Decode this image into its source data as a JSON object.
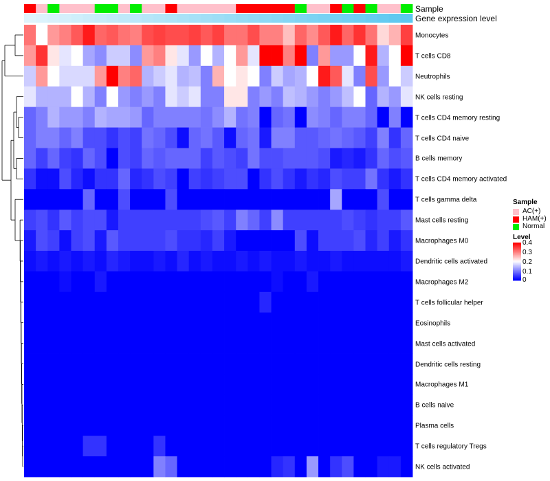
{
  "chart_data": {
    "type": "heatmap",
    "title": "",
    "annotations": [
      {
        "name": "Sample"
      },
      {
        "name": "Gene expression level"
      }
    ],
    "sample_groups": [
      "HAM(+)",
      "AC(+)",
      "Normal",
      "AC(+)",
      "AC(+)",
      "AC(+)",
      "Normal",
      "Normal",
      "AC(+)",
      "Normal",
      "AC(+)",
      "AC(+)",
      "HAM(+)",
      "AC(+)",
      "AC(+)",
      "AC(+)",
      "AC(+)",
      "AC(+)",
      "HAM(+)",
      "HAM(+)",
      "HAM(+)",
      "HAM(+)",
      "HAM(+)",
      "Normal",
      "AC(+)",
      "AC(+)",
      "HAM(+)",
      "Normal",
      "HAM(+)",
      "Normal",
      "AC(+)",
      "AC(+)",
      "Normal"
    ],
    "group_colors": {
      "AC(+)": "#ffc0cb",
      "HAM(+)": "#ff0000",
      "Normal": "#00ee00"
    },
    "expression_gradient": [
      "#e0f4fc",
      "#5bc8f0"
    ],
    "rows": [
      "Monocytes",
      "T cells CD8",
      "Neutrophils",
      "NK cells resting",
      "T cells CD4 memory resting",
      "T cells CD4 naive",
      "B cells memory",
      "T cells CD4 memory activated",
      "T cells gamma delta",
      "Mast cells resting",
      "Macrophages M0",
      "Dendritic cells activated",
      "Macrophages M2",
      "T cells follicular helper",
      "Eosinophils",
      "Mast cells activated",
      "Dendritic cells resting",
      "Macrophages M1",
      "B cells naive",
      "Plasma cells",
      "T cells regulatory  Tregs",
      "NK cells activated"
    ],
    "values": [
      [
        0.31,
        0.2,
        0.28,
        0.3,
        0.33,
        0.38,
        0.32,
        0.33,
        0.31,
        0.3,
        0.34,
        0.35,
        0.34,
        0.34,
        0.35,
        0.33,
        0.35,
        0.31,
        0.31,
        0.34,
        0.3,
        0.3,
        0.25,
        0.32,
        0.29,
        0.33,
        0.38,
        0.32,
        0.36,
        0.31,
        0.23,
        0.26,
        0.35
      ],
      [
        0.28,
        0.36,
        0.22,
        0.18,
        0.2,
        0.13,
        0.11,
        0.16,
        0.16,
        0.11,
        0.28,
        0.3,
        0.22,
        0.18,
        0.12,
        0.2,
        0.14,
        0.2,
        0.28,
        0.18,
        0.4,
        0.4,
        0.3,
        0.4,
        0.1,
        0.28,
        0.12,
        0.12,
        0.2,
        0.38,
        0.14,
        0.2,
        0.4
      ],
      [
        0.16,
        0.28,
        0.2,
        0.17,
        0.17,
        0.17,
        0.28,
        0.4,
        0.3,
        0.32,
        0.14,
        0.16,
        0.18,
        0.14,
        0.15,
        0.1,
        0.26,
        0.2,
        0.22,
        0.2,
        0.1,
        0.16,
        0.13,
        0.14,
        0.2,
        0.38,
        0.33,
        0.18,
        0.1,
        0.34,
        0.12,
        0.2,
        0.16
      ],
      [
        0.18,
        0.14,
        0.14,
        0.14,
        0.2,
        0.14,
        0.1,
        0.2,
        0.12,
        0.1,
        0.12,
        0.1,
        0.18,
        0.16,
        0.18,
        0.1,
        0.1,
        0.22,
        0.22,
        0.1,
        0.12,
        0.1,
        0.15,
        0.14,
        0.12,
        0.1,
        0.12,
        0.15,
        0.2,
        0.08,
        0.14,
        0.12,
        0.18
      ],
      [
        0.08,
        0.1,
        0.14,
        0.12,
        0.12,
        0.1,
        0.14,
        0.13,
        0.13,
        0.12,
        0.08,
        0.1,
        0.1,
        0.1,
        0.1,
        0.09,
        0.11,
        0.14,
        0.09,
        0.1,
        0.0,
        0.08,
        0.09,
        0.0,
        0.11,
        0.1,
        0.08,
        0.1,
        0.1,
        0.08,
        0.0,
        0.1,
        0.0
      ],
      [
        0.08,
        0.1,
        0.1,
        0.08,
        0.1,
        0.06,
        0.06,
        0.04,
        0.06,
        0.05,
        0.09,
        0.08,
        0.06,
        0.01,
        0.08,
        0.09,
        0.07,
        0.01,
        0.08,
        0.09,
        0.02,
        0.1,
        0.1,
        0.07,
        0.07,
        0.08,
        0.09,
        0.08,
        0.07,
        0.05,
        0.1,
        0.04,
        0.08
      ],
      [
        0.08,
        0.05,
        0.08,
        0.05,
        0.04,
        0.08,
        0.06,
        0.0,
        0.06,
        0.05,
        0.08,
        0.07,
        0.08,
        0.08,
        0.08,
        0.05,
        0.07,
        0.06,
        0.05,
        0.09,
        0.06,
        0.06,
        0.07,
        0.07,
        0.07,
        0.06,
        0.02,
        0.03,
        0.02,
        0.04,
        0.08,
        0.06,
        0.07
      ],
      [
        0.04,
        0.01,
        0.01,
        0.06,
        0.03,
        0.01,
        0.04,
        0.04,
        0.08,
        0.03,
        0.04,
        0.06,
        0.05,
        0.0,
        0.05,
        0.04,
        0.05,
        0.06,
        0.06,
        0.0,
        0.04,
        0.06,
        0.04,
        0.02,
        0.04,
        0.03,
        0.06,
        0.05,
        0.05,
        0.09,
        0.04,
        0.02,
        0.04
      ],
      [
        0.0,
        0.0,
        0.0,
        0.0,
        0.0,
        0.08,
        0.0,
        0.0,
        0.06,
        0.0,
        0.0,
        0.0,
        0.06,
        0.0,
        0.0,
        0.0,
        0.0,
        0.0,
        0.0,
        0.0,
        0.0,
        0.0,
        0.0,
        0.0,
        0.0,
        0.0,
        0.13,
        0.0,
        0.0,
        0.0,
        0.06,
        0.0,
        0.0
      ],
      [
        0.05,
        0.06,
        0.04,
        0.07,
        0.05,
        0.06,
        0.06,
        0.02,
        0.05,
        0.05,
        0.05,
        0.05,
        0.05,
        0.05,
        0.05,
        0.06,
        0.07,
        0.05,
        0.1,
        0.08,
        0.05,
        0.11,
        0.05,
        0.05,
        0.05,
        0.05,
        0.05,
        0.06,
        0.05,
        0.04,
        0.05,
        0.05,
        0.07
      ],
      [
        0.02,
        0.06,
        0.05,
        0.01,
        0.05,
        0.06,
        0.02,
        0.07,
        0.05,
        0.05,
        0.05,
        0.05,
        0.06,
        0.04,
        0.04,
        0.03,
        0.05,
        0.02,
        0.0,
        0.0,
        0.0,
        0.0,
        0.0,
        0.06,
        0.01,
        0.05,
        0.05,
        0.05,
        0.06,
        0.03,
        0.05,
        0.02,
        0.04
      ],
      [
        0.01,
        0.02,
        0.01,
        0.02,
        0.01,
        0.02,
        0.01,
        0.03,
        0.02,
        0.01,
        0.01,
        0.02,
        0.01,
        0.03,
        0.01,
        0.02,
        0.01,
        0.01,
        0.02,
        0.01,
        0.02,
        0.01,
        0.01,
        0.02,
        0.01,
        0.01,
        0.02,
        0.01,
        0.01,
        0.01,
        0.01,
        0.01,
        0.02
      ],
      [
        0.0,
        0.0,
        0.0,
        0.01,
        0.0,
        0.0,
        0.02,
        0.0,
        0.0,
        0.0,
        0.0,
        0.0,
        0.0,
        0.0,
        0.0,
        0.0,
        0.0,
        0.0,
        0.0,
        0.0,
        0.0,
        0.01,
        0.0,
        0.0,
        0.02,
        0.0,
        0.0,
        0.0,
        0.0,
        0.0,
        0.0,
        0.0,
        0.0
      ],
      [
        0.0,
        0.0,
        0.0,
        0.0,
        0.0,
        0.0,
        0.0,
        0.0,
        0.0,
        0.0,
        0.0,
        0.0,
        0.0,
        0.0,
        0.0,
        0.0,
        0.0,
        0.0,
        0.0,
        0.0,
        0.03,
        0.0,
        0.0,
        0.0,
        0.0,
        0.0,
        0.0,
        0.0,
        0.0,
        0.0,
        0.0,
        0.0,
        0.0
      ],
      [
        0.0,
        0.0,
        0.0,
        0.0,
        0.0,
        0.0,
        0.0,
        0.0,
        0.0,
        0.0,
        0.0,
        0.0,
        0.0,
        0.0,
        0.0,
        0.0,
        0.0,
        0.0,
        0.0,
        0.0,
        0.0,
        0.0,
        0.0,
        0.0,
        0.0,
        0.0,
        0.0,
        0.0,
        0.0,
        0.0,
        0.0,
        0.0,
        0.0
      ],
      [
        0.0,
        0.0,
        0.0,
        0.0,
        0.0,
        0.0,
        0.0,
        0.0,
        0.0,
        0.0,
        0.0,
        0.0,
        0.0,
        0.0,
        0.0,
        0.0,
        0.0,
        0.0,
        0.0,
        0.0,
        0.0,
        0.0,
        0.0,
        0.0,
        0.0,
        0.0,
        0.0,
        0.0,
        0.0,
        0.0,
        0.0,
        0.0,
        0.0
      ],
      [
        0.0,
        0.0,
        0.0,
        0.0,
        0.0,
        0.0,
        0.0,
        0.0,
        0.0,
        0.0,
        0.0,
        0.0,
        0.0,
        0.0,
        0.0,
        0.0,
        0.0,
        0.0,
        0.0,
        0.0,
        0.0,
        0.0,
        0.0,
        0.0,
        0.0,
        0.0,
        0.0,
        0.0,
        0.0,
        0.0,
        0.0,
        0.0,
        0.0
      ],
      [
        0.0,
        0.0,
        0.0,
        0.0,
        0.0,
        0.0,
        0.0,
        0.0,
        0.0,
        0.0,
        0.0,
        0.0,
        0.0,
        0.0,
        0.0,
        0.0,
        0.0,
        0.0,
        0.0,
        0.0,
        0.0,
        0.0,
        0.0,
        0.0,
        0.0,
        0.0,
        0.0,
        0.0,
        0.0,
        0.0,
        0.0,
        0.0,
        0.0
      ],
      [
        0.0,
        0.0,
        0.0,
        0.0,
        0.0,
        0.0,
        0.0,
        0.0,
        0.0,
        0.0,
        0.0,
        0.0,
        0.0,
        0.0,
        0.0,
        0.0,
        0.0,
        0.0,
        0.0,
        0.0,
        0.0,
        0.0,
        0.0,
        0.0,
        0.0,
        0.0,
        0.0,
        0.0,
        0.0,
        0.0,
        0.0,
        0.0,
        0.0
      ],
      [
        0.0,
        0.0,
        0.0,
        0.0,
        0.0,
        0.0,
        0.0,
        0.0,
        0.0,
        0.0,
        0.0,
        0.0,
        0.0,
        0.0,
        0.0,
        0.0,
        0.0,
        0.0,
        0.0,
        0.0,
        0.0,
        0.0,
        0.0,
        0.0,
        0.0,
        0.0,
        0.0,
        0.0,
        0.0,
        0.0,
        0.0,
        0.0,
        0.0
      ],
      [
        0.0,
        0.0,
        0.0,
        0.0,
        0.0,
        0.04,
        0.04,
        0.0,
        0.0,
        0.0,
        0.0,
        0.04,
        0.0,
        0.0,
        0.0,
        0.0,
        0.0,
        0.0,
        0.0,
        0.0,
        0.0,
        0.0,
        0.0,
        0.0,
        0.0,
        0.0,
        0.0,
        0.0,
        0.0,
        0.0,
        0.0,
        0.0,
        0.0
      ],
      [
        0.0,
        0.0,
        0.0,
        0.0,
        0.0,
        0.0,
        0.0,
        0.0,
        0.0,
        0.0,
        0.0,
        0.1,
        0.08,
        0.0,
        0.0,
        0.0,
        0.0,
        0.0,
        0.0,
        0.0,
        0.0,
        0.03,
        0.04,
        0.0,
        0.12,
        0.0,
        0.04,
        0.06,
        0.0,
        0.0,
        0.02,
        0.02,
        0.0
      ]
    ],
    "color_scale": {
      "min": 0,
      "max": 0.4,
      "low_color": "#0000ff",
      "mid_color": "#ffffff",
      "high_color": "#ff0000"
    },
    "legend": {
      "sample_title": "Sample",
      "sample_entries": [
        "AC(+)",
        "HAM(+)",
        "Normal"
      ],
      "level_title": "Level",
      "level_ticks": [
        "0.4",
        "0.3",
        "0.2",
        "0.1",
        "0"
      ],
      "position": "right"
    }
  }
}
